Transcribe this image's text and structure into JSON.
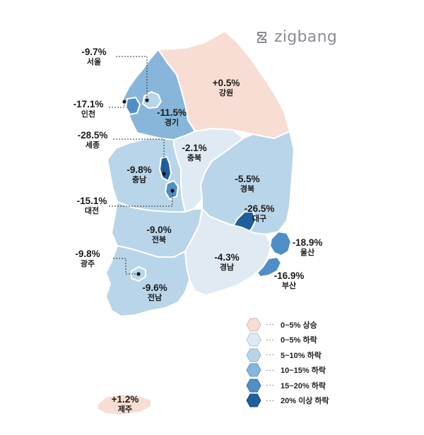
{
  "brand": {
    "name": "zigbang",
    "icon": "zigbang-logo-icon"
  },
  "colors": {
    "rise": "#f7ddd4",
    "fall_0_5": "#dfeaf3",
    "fall_5_10": "#b9d5e9",
    "fall_10_15": "#87b6da",
    "fall_15_20": "#4f8fc6",
    "fall_20_plus": "#1f5f9e",
    "border": "#ffffff",
    "leader": "#333333"
  },
  "regions": [
    {
      "key": "seoul",
      "name": "서울",
      "value": "-9.7%"
    },
    {
      "key": "incheon",
      "name": "인천",
      "value": "-17.1%"
    },
    {
      "key": "gyeonggi",
      "name": "경기",
      "value": "-11.5%"
    },
    {
      "key": "gangwon",
      "name": "강원",
      "value": "+0.5%"
    },
    {
      "key": "sejong",
      "name": "세종",
      "value": "-28.5%"
    },
    {
      "key": "chungbuk",
      "name": "충북",
      "value": "-2.1%"
    },
    {
      "key": "chungnam",
      "name": "충남",
      "value": "-9.8%"
    },
    {
      "key": "daejeon",
      "name": "대전",
      "value": "-15.1%"
    },
    {
      "key": "gyeongbuk",
      "name": "경북",
      "value": "-5.5%"
    },
    {
      "key": "daegu",
      "name": "대구",
      "value": "-26.5%"
    },
    {
      "key": "jeonbuk",
      "name": "전북",
      "value": "-9.0%"
    },
    {
      "key": "ulsan",
      "name": "울산",
      "value": "-18.9%"
    },
    {
      "key": "gwangju",
      "name": "광주",
      "value": "-9.8%"
    },
    {
      "key": "gyeongnam",
      "name": "경남",
      "value": "-4.3%"
    },
    {
      "key": "busan",
      "name": "부산",
      "value": "-16.9%"
    },
    {
      "key": "jeonnam",
      "name": "전남",
      "value": "-9.6%"
    },
    {
      "key": "jeju",
      "name": "제주",
      "value": "+1.2%"
    }
  ],
  "legend": [
    {
      "label": "0~5% 상승",
      "color": "#f7ddd4"
    },
    {
      "label": "0~5% 하락",
      "color": "#dfeaf3"
    },
    {
      "label": "5~10% 하락",
      "color": "#b9d5e9"
    },
    {
      "label": "10~15% 하락",
      "color": "#87b6da"
    },
    {
      "label": "15~20% 하락",
      "color": "#4f8fc6"
    },
    {
      "label": "20% 이상 하락",
      "color": "#1f5f9e"
    }
  ],
  "legend_dots": "···"
}
